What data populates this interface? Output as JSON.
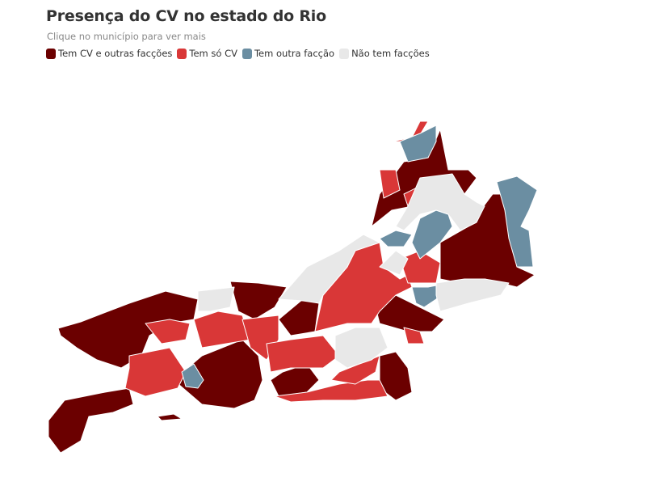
{
  "header": {
    "title": "Presença do CV no estado do Rio",
    "subtitle": "Clique no município para ver mais"
  },
  "legend": [
    {
      "label": "Tem CV e outras facções",
      "color": "#6b0000"
    },
    {
      "label": "Tem só CV",
      "color": "#d93737"
    },
    {
      "label": "Tem outra facção",
      "color": "#6b8ea2"
    },
    {
      "label": "Não tem facções",
      "color": "#e8e8e8"
    }
  ]
}
